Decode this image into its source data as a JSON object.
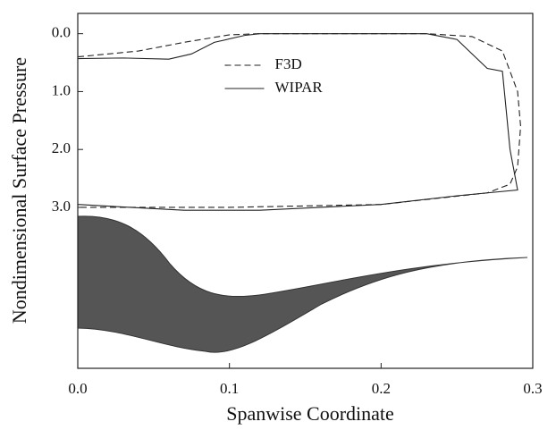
{
  "chart_data": {
    "type": "line",
    "xlabel": "Spanwise Coordinate",
    "ylabel": "Nondimensional Surface Pressure",
    "xlim": [
      0,
      0.3
    ],
    "ylim": [
      5.78,
      -0.35
    ],
    "xticks": [
      {
        "value": 0,
        "label": "0.0"
      },
      0.1,
      0.2,
      0.3
    ],
    "yticks": [
      {
        "value": 0,
        "label": "0.0"
      },
      {
        "value": 1,
        "label": "1.0"
      },
      {
        "value": 2,
        "label": "2.0"
      },
      {
        "value": 3,
        "label": "3.0"
      }
    ],
    "legend": "center",
    "series": [
      {
        "name": "F3D",
        "color": "#222222",
        "dash": true,
        "x": [
          0.0,
          0.04,
          0.07,
          0.1,
          0.12,
          0.23,
          0.26,
          0.28,
          0.29,
          0.292,
          0.29,
          0.285,
          0.27,
          0.2,
          0.1,
          0.0
        ],
        "values": [
          0.4,
          0.3,
          0.15,
          0.02,
          0.0,
          0.0,
          0.05,
          0.3,
          1.0,
          1.6,
          2.3,
          2.6,
          2.75,
          2.95,
          3.0,
          3.0
        ]
      },
      {
        "name": "WIPAR",
        "color": "#222222",
        "dash": false,
        "x": [
          0.0,
          0.03,
          0.06,
          0.075,
          0.09,
          0.11,
          0.12,
          0.23,
          0.25,
          0.27,
          0.28,
          0.285,
          0.29,
          0.25,
          0.2,
          0.12,
          0.07,
          0.0
        ],
        "values": [
          0.43,
          0.42,
          0.44,
          0.35,
          0.15,
          0.03,
          0.0,
          0.0,
          0.1,
          0.6,
          0.65,
          2.0,
          2.7,
          2.8,
          2.95,
          3.05,
          3.05,
          2.95
        ]
      }
    ]
  }
}
